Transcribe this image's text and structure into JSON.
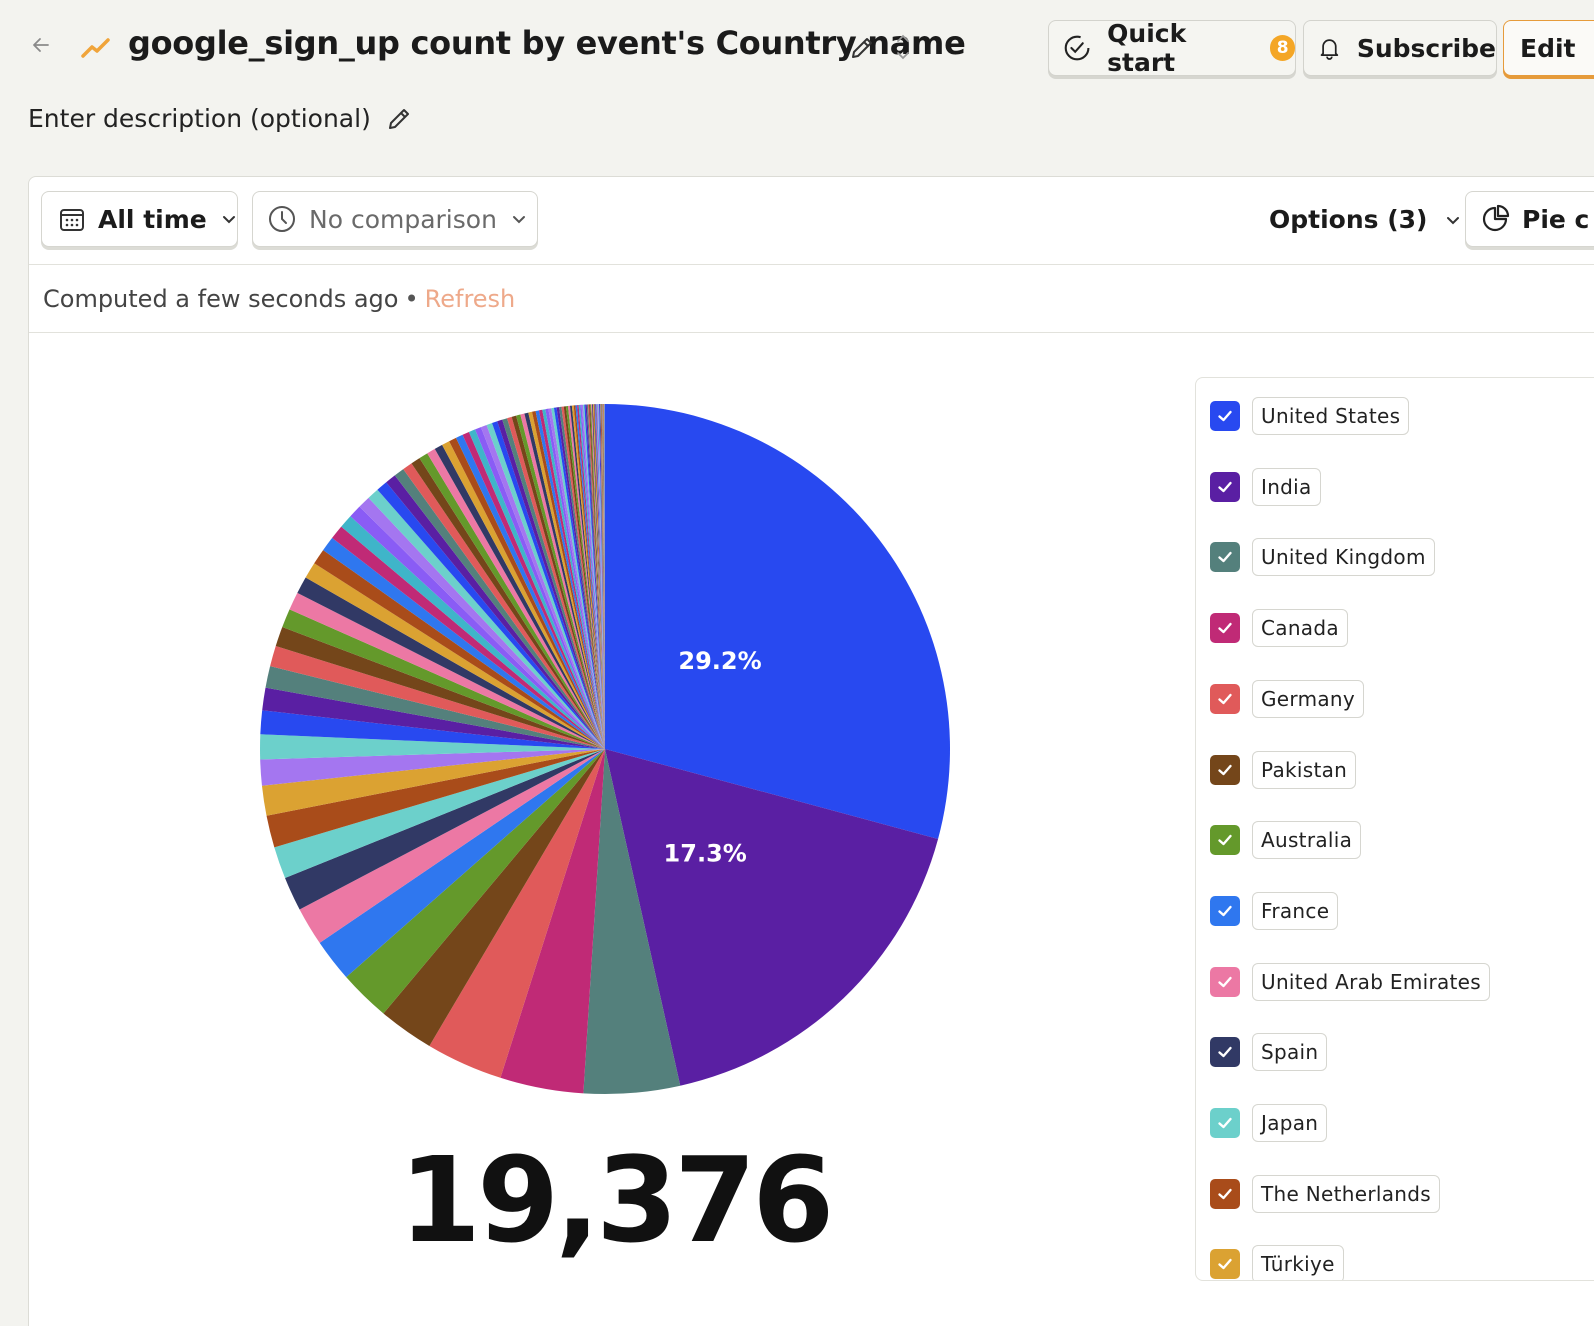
{
  "header": {
    "title": "google_sign_up count by event's Country name",
    "quick_start_label": "Quick start",
    "quick_start_badge": "8",
    "subscribe_label": "Subscribe",
    "edit_label": "Edit"
  },
  "description_placeholder": "Enter description (optional)",
  "toolbar": {
    "date_range": "All time",
    "comparison": "No comparison",
    "options_label": "Options (3)",
    "chart_type_label": "Pie c"
  },
  "status": {
    "computed_text": "Computed a few seconds ago",
    "separator": "•",
    "refresh_label": "Refresh"
  },
  "total_value": "19,376",
  "colors": {
    "accent": "#e69b3b",
    "refresh": "#eea98a",
    "badge": "#f4a626"
  },
  "legend": [
    {
      "label": "United States",
      "color": "#2849f0"
    },
    {
      "label": "India",
      "color": "#5a1fa3"
    },
    {
      "label": "United Kingdom",
      "color": "#54807c"
    },
    {
      "label": "Canada",
      "color": "#c02a76"
    },
    {
      "label": "Germany",
      "color": "#e05a5a"
    },
    {
      "label": "Pakistan",
      "color": "#74461a"
    },
    {
      "label": "Australia",
      "color": "#64992b"
    },
    {
      "label": "France",
      "color": "#2f77ef"
    },
    {
      "label": "United Arab Emirates",
      "color": "#ec78a4"
    },
    {
      "label": "Spain",
      "color": "#313965"
    },
    {
      "label": "Japan",
      "color": "#6cd0cb"
    },
    {
      "label": "The Netherlands",
      "color": "#a94c1a"
    },
    {
      "label": "Türkiye",
      "color": "#dba232"
    }
  ],
  "chart_data": {
    "type": "pie",
    "slices": [
      {
        "name": "United States",
        "percent": 29.2,
        "label": "29.2%",
        "color": "#2849f0"
      },
      {
        "name": "India",
        "percent": 17.3,
        "label": "17.3%",
        "color": "#5a1fa3"
      },
      {
        "name": "United Kingdom",
        "percent": 4.5,
        "color": "#54807c"
      },
      {
        "name": "Canada",
        "percent": 3.9,
        "color": "#c02a76"
      },
      {
        "name": "Germany",
        "percent": 3.6,
        "color": "#e05a5a"
      },
      {
        "name": "Pakistan",
        "percent": 2.6,
        "color": "#74461a"
      },
      {
        "name": "Australia",
        "percent": 2.4,
        "color": "#64992b"
      },
      {
        "name": "France",
        "percent": 2.0,
        "color": "#2f77ef"
      },
      {
        "name": "United Arab Emirates",
        "percent": 1.8,
        "color": "#ec78a4"
      },
      {
        "name": "Spain",
        "percent": 1.6,
        "color": "#313965"
      },
      {
        "name": "Japan",
        "percent": 1.5,
        "color": "#6cd0cb"
      },
      {
        "name": "The Netherlands",
        "percent": 1.5,
        "color": "#a94c1a"
      },
      {
        "name": "Türkiye",
        "percent": 1.4,
        "color": "#dba232"
      }
    ],
    "other_slice_count": 95,
    "other_slice_colors": [
      "#a476f0",
      "#6cd0cb",
      "#2849f0",
      "#5a1fa3",
      "#54807c",
      "#e05a5a",
      "#74461a",
      "#64992b",
      "#ec78a4",
      "#313965",
      "#dba232",
      "#a94c1a",
      "#2f77ef",
      "#c02a76",
      "#3fb5c9",
      "#8a5cf5"
    ],
    "total": 19376
  }
}
